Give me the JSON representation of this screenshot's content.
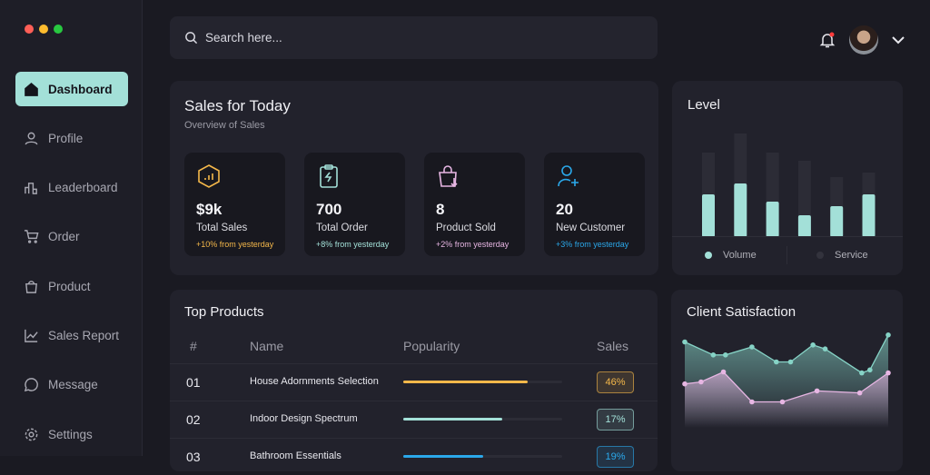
{
  "window_controls": {
    "colors": [
      "#ff5f57",
      "#febc2e",
      "#28c840"
    ]
  },
  "sidebar": {
    "items": [
      {
        "label": "Dashboard",
        "icon": "home-icon",
        "active": true
      },
      {
        "label": "Profile",
        "icon": "user-icon"
      },
      {
        "label": "Leaderboard",
        "icon": "leaderboard-icon"
      },
      {
        "label": "Order",
        "icon": "cart-icon"
      },
      {
        "label": "Product",
        "icon": "bag-icon"
      },
      {
        "label": "Sales Report",
        "icon": "chart-line-icon"
      },
      {
        "label": "Message",
        "icon": "message-icon"
      },
      {
        "label": "Settings",
        "icon": "gear-icon"
      }
    ]
  },
  "search": {
    "placeholder": "Search here..."
  },
  "header": {
    "notification_icon": "bell-icon",
    "has_notification": true,
    "avatar": "avatar",
    "menu_icon": "chevron-down-icon"
  },
  "sales_today": {
    "title": "Sales for Today",
    "subtitle": "Overview of Sales",
    "stats": [
      {
        "value": "$9k",
        "label": "Total Sales",
        "change": "+10% from yesterday",
        "color": "#f5b84a",
        "icon": "hexagon-chart-icon"
      },
      {
        "value": "700",
        "label": "Total Order",
        "change": "+8% from yesterday",
        "color": "#a3e0d8",
        "icon": "clipboard-bolt-icon"
      },
      {
        "value": "8",
        "label": "Product Sold",
        "change": "+2% from yesterday",
        "color": "#e7b6e3",
        "icon": "bag-download-icon"
      },
      {
        "value": "20",
        "label": "New Customer",
        "change": "+3% from yesterday",
        "color": "#2ba8ea",
        "icon": "user-plus-icon"
      }
    ]
  },
  "level": {
    "title": "Level",
    "legend": [
      {
        "label": "Volume",
        "color": "#a3e0d8"
      },
      {
        "label": "Service",
        "color": "#33333d"
      }
    ],
    "chart_data": {
      "type": "bar",
      "series": [
        {
          "name": "Volume",
          "values": [
            47,
            59,
            39,
            24,
            34,
            47
          ]
        },
        {
          "name": "Service",
          "values": [
            93,
            114,
            93,
            84,
            66,
            71
          ]
        }
      ]
    }
  },
  "top_products": {
    "title": "Top Products",
    "columns": [
      "#",
      "Name",
      "Popularity",
      "Sales"
    ],
    "rows": [
      {
        "num": "01",
        "name": "House Adornments Selection",
        "popularity": 78,
        "sales": "46%",
        "color": "#f5b84a"
      },
      {
        "num": "02",
        "name": "Indoor Design Spectrum",
        "popularity": 62,
        "sales": "17%",
        "color": "#a3e0d8"
      },
      {
        "num": "03",
        "name": "Bathroom Essentials",
        "popularity": 50,
        "sales": "19%",
        "color": "#2ba8ea"
      }
    ]
  },
  "client_satisfaction": {
    "title": "Client Satisfaction",
    "chart_data": {
      "type": "area",
      "series": [
        {
          "color": "#86d3c6",
          "x": [
            0,
            14,
            20,
            33,
            45,
            52,
            63,
            69,
            87,
            91,
            100
          ],
          "values": [
            85,
            72,
            72,
            80,
            65,
            65,
            82,
            78,
            54,
            57,
            92
          ]
        },
        {
          "color": "#e7b6e3",
          "x": [
            0,
            8,
            19,
            33,
            48,
            65,
            86,
            100
          ],
          "values": [
            43,
            45,
            55,
            25,
            25,
            36,
            34,
            54
          ]
        }
      ]
    }
  }
}
